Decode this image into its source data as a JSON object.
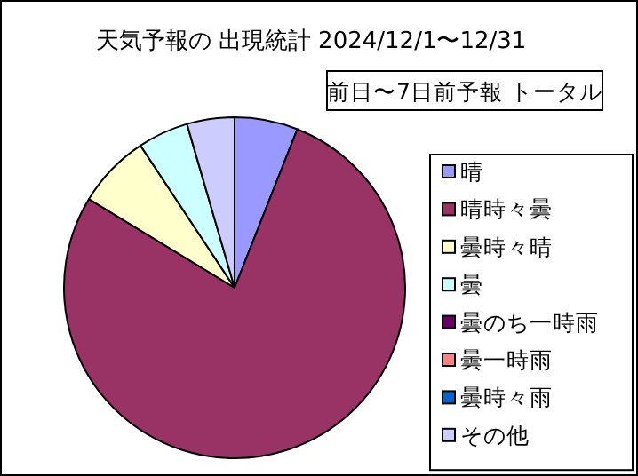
{
  "chart_data": {
    "type": "pie",
    "title": "天気予報の 出現統計 2024/12/1〜12/31",
    "subtitle": "前日〜7日前予報 トータル",
    "categories": [
      "晴",
      "晴時々曇",
      "曇時々晴",
      "曇",
      "曇のち一時雨",
      "曇一時雨",
      "曇時々雨",
      "その他"
    ],
    "values": [
      6,
      77.7,
      7,
      4.8,
      0,
      0,
      0,
      4.5
    ],
    "colors": [
      "#9999ff",
      "#993366",
      "#ffffcc",
      "#ccffff",
      "#660066",
      "#ff8080",
      "#0066cc",
      "#ccccff"
    ],
    "legend": "right"
  }
}
